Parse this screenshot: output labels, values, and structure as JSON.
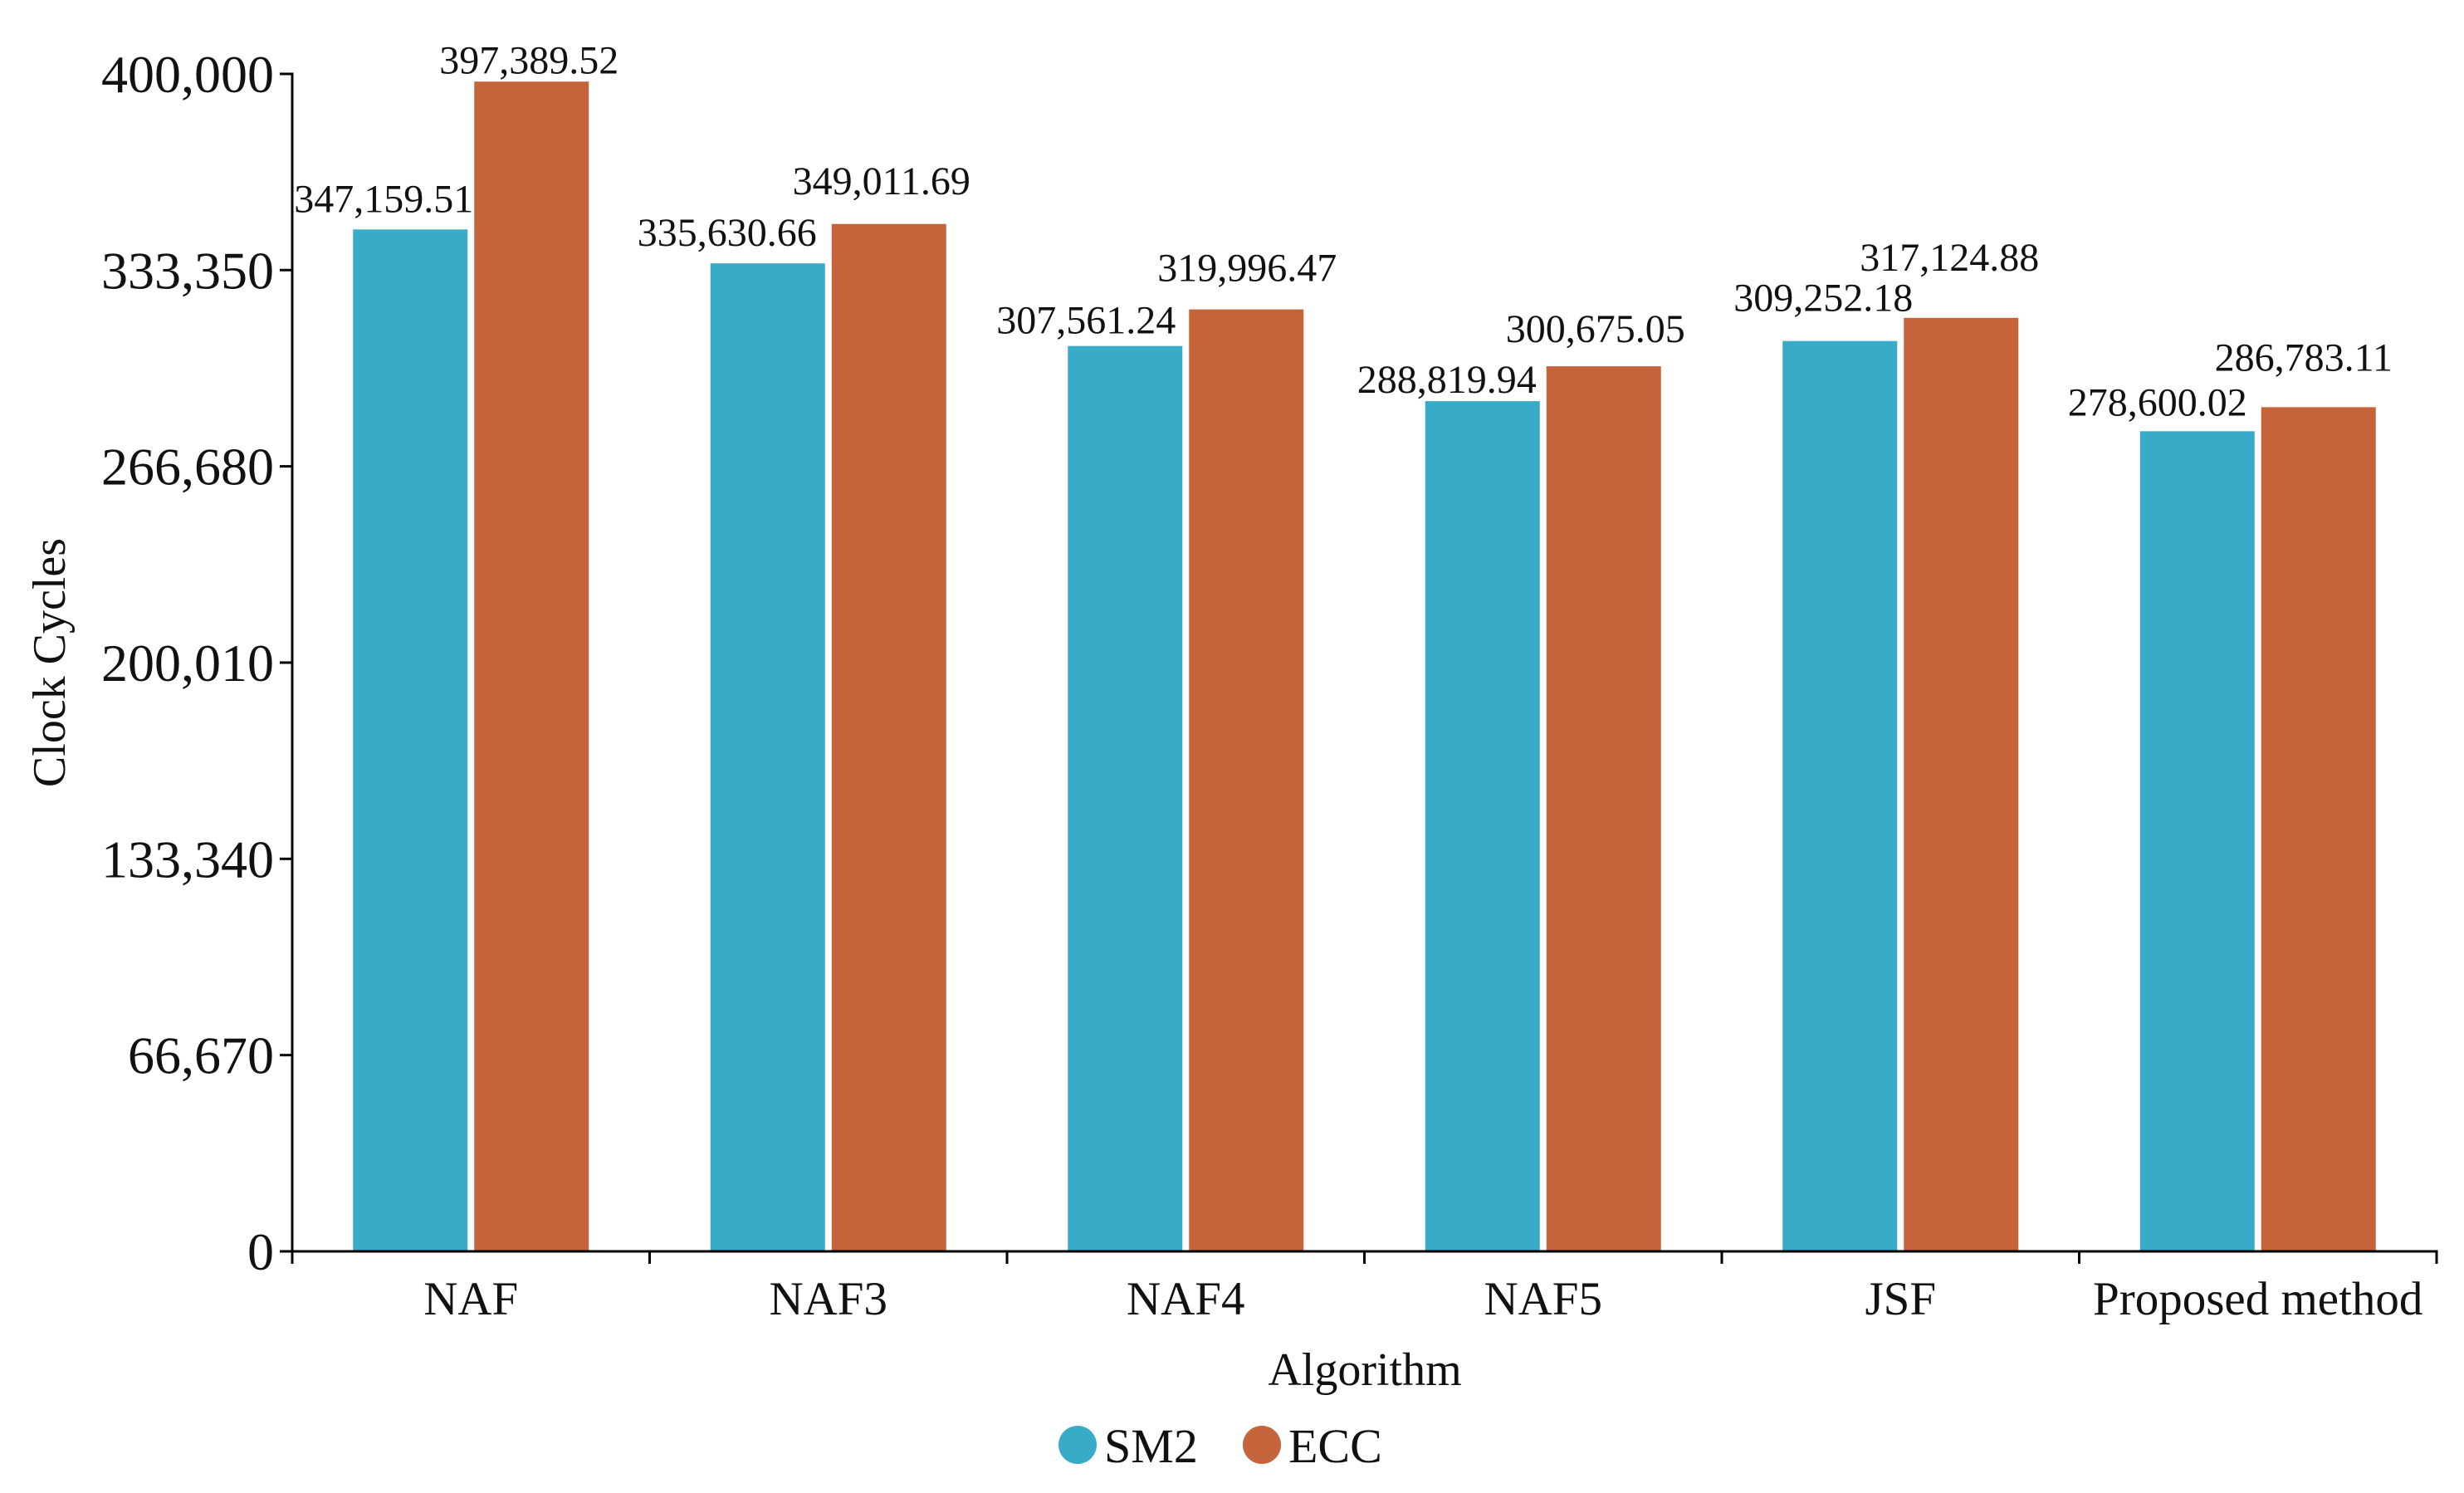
{
  "chart_data": {
    "type": "bar",
    "title": "",
    "xlabel": "Algorithm",
    "ylabel": "Clock Cycles",
    "ylim": [
      0,
      400000
    ],
    "grid": false,
    "yticks": [
      0,
      66670,
      133340,
      200010,
      266680,
      333350,
      400000
    ],
    "ytick_labels": [
      "0",
      "66,670",
      "133,340",
      "200,010",
      "266,680",
      "333,350",
      "400,000"
    ],
    "categories": [
      "NAF",
      "NAF3",
      "NAF4",
      "NAF5",
      "JSF",
      "Proposed method"
    ],
    "series": [
      {
        "name": "SM2",
        "color": "#38ABC8",
        "values": [
          347159.51,
          335630.66,
          307561.24,
          288819.94,
          309252.18,
          278600.02
        ],
        "labels": [
          "347,159.51",
          "335,630.66",
          "307,561.24",
          "288,819.94",
          "309,252.18",
          "278,600.02"
        ]
      },
      {
        "name": "ECC",
        "color": "#C5643B",
        "values": [
          397389.52,
          349011.69,
          319996.47,
          300675.05,
          317124.88,
          286783.11
        ],
        "labels": [
          "397,389.52",
          "349,011.69",
          "319,996.47",
          "300,675.05",
          "317,124.88",
          "286,783.11"
        ]
      }
    ]
  }
}
